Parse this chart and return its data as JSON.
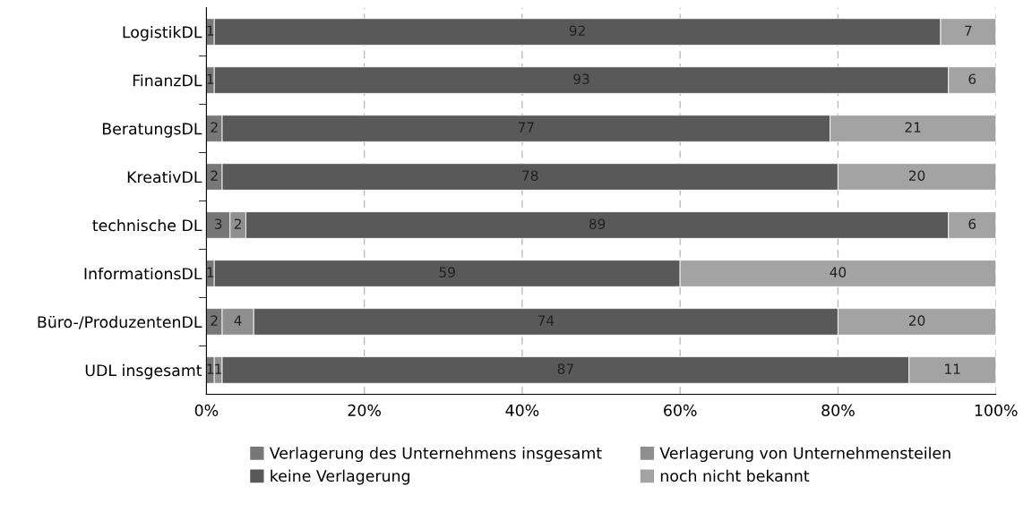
{
  "chart_data": {
    "type": "bar",
    "orientation": "horizontal",
    "stacked": true,
    "categories": [
      "LogistikDL",
      "FinanzDL",
      "BeratungsDL",
      "KreativDL",
      "technische DL",
      "InformationsDL",
      "Büro-/ProduzentenDL",
      "UDL insgesamt"
    ],
    "series": [
      {
        "name": "Verlagerung des Unternehmens insgesamt",
        "color": "#777777",
        "values": [
          1,
          1,
          2,
          2,
          3,
          1,
          2,
          1
        ],
        "value_labels": [
          "1",
          "1",
          "2",
          "2",
          "3",
          "1",
          "2",
          "1"
        ]
      },
      {
        "name": "Verlagerung von Unternehmensteilen",
        "color": "#8f8f8f",
        "values": [
          0,
          0,
          0,
          0,
          2,
          0,
          4,
          1
        ],
        "value_labels": [
          null,
          null,
          null,
          null,
          "2",
          null,
          "4",
          "1"
        ]
      },
      {
        "name": "keine Verlagerung",
        "color": "#595959",
        "values": [
          92,
          93,
          77,
          78,
          89,
          59,
          74,
          87
        ],
        "value_labels": [
          "92",
          "93",
          "77",
          "78",
          "89",
          "59",
          "74",
          "87"
        ]
      },
      {
        "name": "noch nicht bekannt",
        "color": "#a3a3a3",
        "values": [
          7,
          6,
          21,
          20,
          6,
          40,
          20,
          11
        ],
        "value_labels": [
          "7",
          "6",
          "21",
          "20",
          "6",
          "40",
          "20",
          "11"
        ]
      }
    ],
    "xlim": [
      0,
      100
    ],
    "xticks": [
      {
        "value": 0,
        "label": "0%"
      },
      {
        "value": 20,
        "label": "20%"
      },
      {
        "value": 40,
        "label": "40%"
      },
      {
        "value": 60,
        "label": "60%"
      },
      {
        "value": 80,
        "label": "80%"
      },
      {
        "value": 100,
        "label": "100%"
      }
    ],
    "grid": "x",
    "legend": "bottom"
  }
}
